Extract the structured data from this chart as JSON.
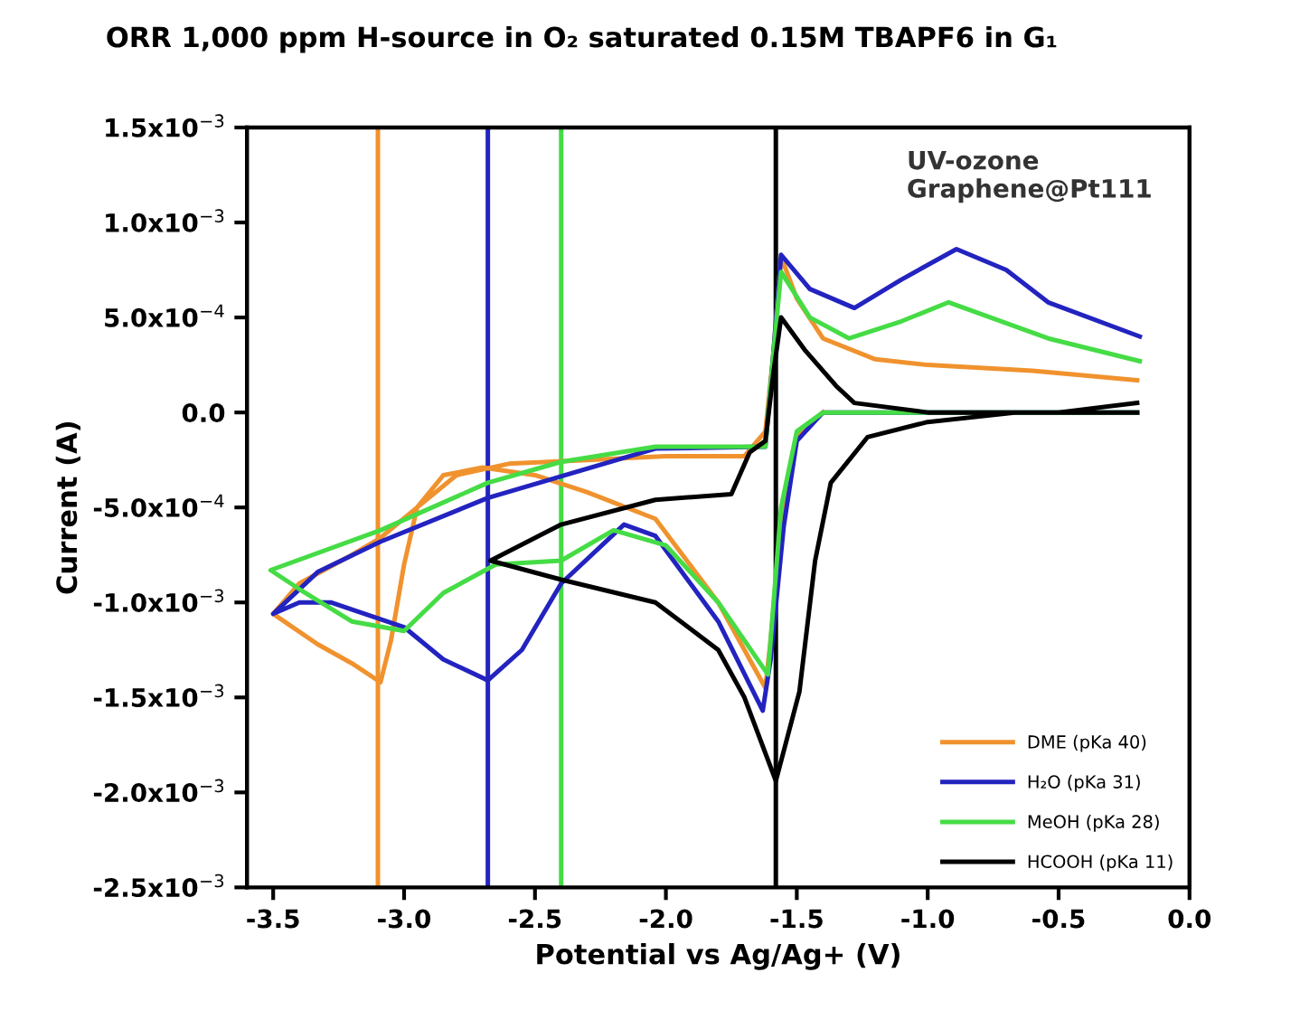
{
  "chart_data": {
    "type": "line",
    "title": "ORR 1,000 ppm H-source in O₂ saturated 0.15M TBAPF6 in G₁",
    "xlabel": "Potential vs Ag/Ag+ (V)",
    "ylabel": "Current (A)",
    "annotations": [
      "UV-ozone\nGraphene@Pt111"
    ],
    "xlim": [
      -3.6,
      0.0
    ],
    "xticks": [
      -3.5,
      {
        "value": -3,
        "label": "-3.0"
      },
      -2.5,
      {
        "value": -2,
        "label": "-2.0"
      },
      -1.5,
      {
        "value": -1,
        "label": "-1.0"
      },
      -0.5,
      {
        "value": 0,
        "label": "0.0"
      }
    ],
    "ylim": [
      -0.0025,
      0.0015
    ],
    "yticks": [
      {
        "value": -0.0025,
        "label": "-2.5x10$^{−3}$"
      },
      {
        "value": -0.002,
        "label": "-2.0x10$^{−3}$"
      },
      {
        "value": -0.0015,
        "label": "-1.5x10$^{−3}$"
      },
      {
        "value": -0.001,
        "label": "-1.0x10$^{−3}$"
      },
      {
        "value": -0.0005,
        "label": "-5.0x10$^{−4}$"
      },
      {
        "value": 0,
        "label": "0.0"
      },
      {
        "value": 0.0005,
        "label": "5.0x10$^{−4}$"
      },
      {
        "value": 0.001,
        "label": "1.0x10$^{−3}$"
      },
      {
        "value": 0.0015,
        "label": "1.5x10$^{−3}$"
      }
    ],
    "grid": false,
    "legend": "bottom right",
    "marker": "none",
    "line_style": "solid",
    "ref_lines": [
      {
        "axis": "x",
        "value": -3.1,
        "color": "#f0922e"
      },
      {
        "axis": "x",
        "value": -2.68,
        "color": "#2323c0"
      },
      {
        "axis": "x",
        "value": -2.4,
        "color": "#45dc45"
      },
      {
        "axis": "x",
        "value": -1.58,
        "color": "#000000"
      }
    ],
    "series": [
      {
        "name": "DME (pKa 40)",
        "color": "#f0922e",
        "x": [
          -1.4,
          -1.5,
          -1.56,
          -1.6,
          -1.62,
          -1.8,
          -2.04,
          -2.3,
          -2.5,
          -2.7,
          -2.85,
          -2.95,
          -3.0,
          -3.05,
          -3.09,
          -3.2,
          -3.33,
          -3.5,
          -3.4,
          -3.2,
          -3.09,
          -2.95,
          -2.8,
          -2.6,
          -2.3,
          -2.0,
          -1.7,
          -1.62,
          -1.59,
          -1.56,
          -1.5,
          -1.4,
          -1.2,
          -1.0,
          -0.6,
          -0.2
        ],
        "values": [
          0,
          -0.00012,
          -0.0006,
          -0.0012,
          -0.00145,
          -0.001,
          -0.00056,
          -0.00042,
          -0.00033,
          -0.00029,
          -0.00033,
          -0.0005,
          -0.0008,
          -0.0012,
          -0.00142,
          -0.00132,
          -0.00122,
          -0.00106,
          -0.0009,
          -0.00075,
          -0.00066,
          -0.0005,
          -0.00033,
          -0.00027,
          -0.00025,
          -0.00023,
          -0.00023,
          -0.0001,
          0.0003,
          0.00082,
          0.0006,
          0.00039,
          0.00028,
          0.00025,
          0.00022,
          0.00017
        ]
      },
      {
        "name": "H₂O (pKa 31)",
        "color": "#2323c0",
        "x": [
          -0.2,
          -1.0,
          -1.4,
          -1.5,
          -1.55,
          -1.6,
          -1.63,
          -1.8,
          -2.04,
          -2.16,
          -2.4,
          -2.55,
          -2.68,
          -2.85,
          -3.0,
          -3.28,
          -3.4,
          -3.5,
          -3.33,
          -3.09,
          -2.68,
          -2.04,
          -1.62,
          -1.59,
          -1.56,
          -1.45,
          -1.28,
          -1.1,
          -0.89,
          -0.7,
          -0.54,
          -0.19
        ],
        "values": [
          0,
          0,
          0,
          -0.00015,
          -0.0006,
          -0.0013,
          -0.00157,
          -0.0011,
          -0.00065,
          -0.00059,
          -0.0009,
          -0.00125,
          -0.00141,
          -0.0013,
          -0.00113,
          -0.001,
          -0.001,
          -0.00106,
          -0.00084,
          -0.00068,
          -0.00045,
          -0.00019,
          -0.00018,
          0.0003,
          0.00083,
          0.00065,
          0.00055,
          0.0007,
          0.00086,
          0.00075,
          0.00058,
          0.0004
        ]
      },
      {
        "name": "MeOH (pKa 28)",
        "color": "#45dc45",
        "x": [
          -0.2,
          -1.0,
          -1.4,
          -1.5,
          -1.56,
          -1.6,
          -1.61,
          -1.8,
          -2.0,
          -2.2,
          -2.4,
          -2.65,
          -2.85,
          -3.0,
          -3.2,
          -3.4,
          -3.51,
          -3.09,
          -2.68,
          -2.4,
          -2.04,
          -1.62,
          -1.59,
          -1.56,
          -1.45,
          -1.3,
          -1.1,
          -0.92,
          -0.54,
          -0.19
        ],
        "values": [
          0,
          0,
          0,
          -0.0001,
          -0.0005,
          -0.0012,
          -0.00138,
          -0.001,
          -0.0007,
          -0.00062,
          -0.00078,
          -0.0008,
          -0.00095,
          -0.00115,
          -0.0011,
          -0.00093,
          -0.00083,
          -0.00062,
          -0.00037,
          -0.00026,
          -0.00018,
          -0.00018,
          0.0003,
          0.00074,
          0.0005,
          0.00039,
          0.00048,
          0.00058,
          0.00039,
          0.00027
        ]
      },
      {
        "name": "HCOOH (pKa 11)",
        "color": "#000000",
        "x": [
          -0.2,
          -0.66,
          -1.0,
          -1.23,
          -1.37,
          -1.43,
          -1.49,
          -1.58,
          -1.7,
          -1.8,
          -2.04,
          -2.4,
          -2.67,
          -2.4,
          -2.04,
          -1.75,
          -1.68,
          -1.62,
          -1.59,
          -1.56,
          -1.47,
          -1.35,
          -1.28,
          -1.0,
          -0.5,
          -0.2
        ],
        "values": [
          0,
          0,
          -5e-05,
          -0.00013,
          -0.00037,
          -0.00078,
          -0.00147,
          -0.00194,
          -0.0015,
          -0.00125,
          -0.001,
          -0.00088,
          -0.00078,
          -0.00059,
          -0.00046,
          -0.00043,
          -0.00021,
          -0.00015,
          0.0002,
          0.0005,
          0.00033,
          0.00014,
          5e-05,
          0,
          0,
          5e-05
        ]
      }
    ]
  }
}
